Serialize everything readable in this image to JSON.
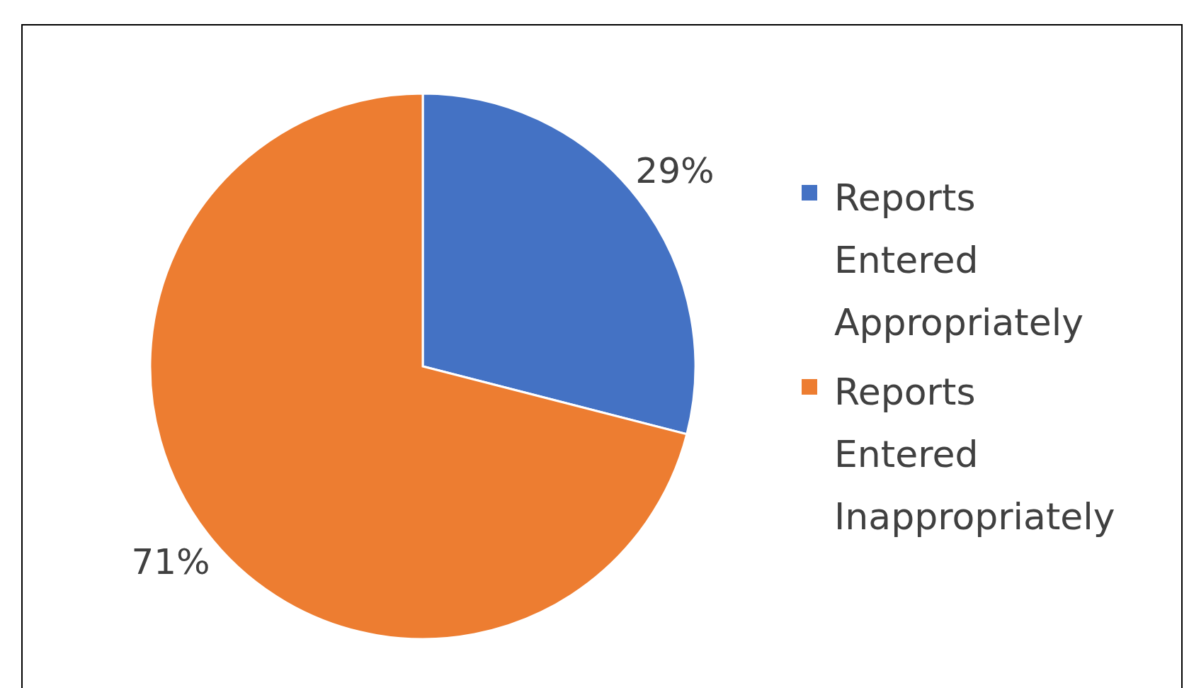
{
  "chart_data": {
    "type": "pie",
    "categories": [
      "Reports Entered Appropriately",
      "Reports Entered Inappropriately"
    ],
    "values": [
      29,
      71
    ],
    "colors": [
      "#4472c4",
      "#ed7d31"
    ],
    "value_labels": [
      "29%",
      "71%"
    ],
    "legend": "right"
  }
}
